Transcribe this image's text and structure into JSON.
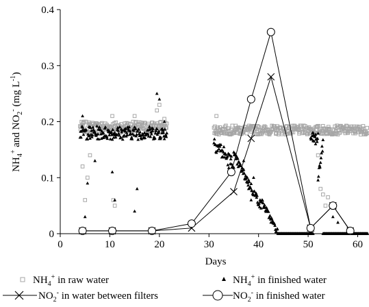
{
  "chart_data": {
    "type": "scatter",
    "xlabel": "Days",
    "ylabel": "NH4+ and NO2- (mg L-1)",
    "ylabel_parts": {
      "a": "NH",
      "a_sub": "4",
      "a_sup": "+",
      "b": " and NO",
      "b_sub": "2",
      "b_sup": "-",
      "c": " (mg L",
      "c_sup": "-1",
      "d": ")"
    },
    "xlim": [
      0,
      62
    ],
    "ylim": [
      0,
      0.4
    ],
    "xticks": [
      "0",
      "10",
      "20",
      "30",
      "40",
      "50",
      "60"
    ],
    "yticks": [
      "0",
      "0.1",
      "0.2",
      "0.3",
      "0.4"
    ],
    "colors": {
      "raw": "#a6a6a6",
      "finished_nh4": "#000000",
      "line": "#000000"
    },
    "legend": {
      "placement": "bottom",
      "entries": [
        {
          "pre": "NH",
          "sub": "4",
          "sup": "+",
          "post": " in raw water"
        },
        {
          "pre": "NH",
          "sub": "4",
          "sup": "+",
          "post": " in finished water"
        },
        {
          "pre": "NO",
          "sub": "2",
          "sup": "-",
          "post": " in water between filters"
        },
        {
          "pre": "NO",
          "sub": "2",
          "sup": "-",
          "post": " in finished water"
        }
      ]
    },
    "series": [
      {
        "key": "nh4_raw",
        "marker": "square-open",
        "segments": [
          {
            "x": [
              4,
              21.5
            ],
            "level": 0.19,
            "jitter": 0.01
          },
          {
            "x": [
              31,
              62
            ],
            "level": 0.185,
            "jitter": 0.008
          }
        ],
        "x": [
          4.5,
          5,
          5.5,
          6,
          10.5,
          10.7,
          11,
          15,
          19.5,
          20,
          21,
          31.5,
          52,
          52.5,
          53,
          53.5,
          54
        ],
        "y": [
          0.12,
          0.06,
          0.1,
          0.14,
          0.21,
          0.06,
          0.05,
          0.21,
          0.22,
          0.23,
          0.205,
          0.21,
          0.14,
          0.08,
          0.07,
          0.05,
          0.065
        ]
      },
      {
        "key": "nh4_finished",
        "marker": "triangle-small",
        "segments": [
          {
            "x": [
              4,
              21.5
            ],
            "level": 0.18,
            "jitter": 0.012
          },
          {
            "x": [
              31,
              35
            ],
            "from": 0.165,
            "to": 0.12,
            "jitter": 0.015
          },
          {
            "x": [
              35,
              40.5
            ],
            "from": 0.14,
            "to": 0.05,
            "jitter": 0.008
          },
          {
            "x": [
              40.5,
              44
            ],
            "from": 0.06,
            "to": 0.0,
            "jitter": 0.006
          },
          {
            "x": [
              44,
              51
            ],
            "level": 0.0,
            "jitter": 0.0
          },
          {
            "x": [
              50.5,
              52
            ],
            "level": 0.17,
            "jitter": 0.01
          },
          {
            "x": [
              52,
              53
            ],
            "from": 0.1,
            "to": 0.16,
            "jitter": 0.008
          },
          {
            "x": [
              53,
              62
            ],
            "level": 0.0,
            "jitter": 0.0
          }
        ],
        "x": [
          4.5,
          5,
          5.5,
          6,
          7,
          10.5,
          11,
          15,
          15.5,
          19.5,
          20,
          21,
          37,
          37.5,
          38,
          38.5,
          39,
          51,
          51.5,
          55,
          56
        ],
        "y": [
          0.21,
          0.03,
          0.09,
          0.17,
          0.13,
          0.11,
          0.06,
          0.04,
          0.08,
          0.25,
          0.24,
          0.2,
          0.13,
          0.1,
          0.08,
          0.06,
          0.1,
          0.18,
          0.16,
          0.03,
          0.02
        ]
      },
      {
        "key": "no2_between",
        "name": "NO2- in water between filters",
        "marker": "x",
        "x": [
          4.5,
          10.5,
          18.5,
          26.5,
          35,
          38.5,
          42.5,
          50.5,
          55,
          58.5
        ],
        "y": [
          0.005,
          0.005,
          0.005,
          0.01,
          0.075,
          0.17,
          0.28,
          0.01,
          0.05,
          0.005
        ]
      },
      {
        "key": "no2_finished",
        "name": "NO2- in finished water",
        "marker": "circle-open",
        "x": [
          4.5,
          10.5,
          18.5,
          26.5,
          34.5,
          38.5,
          42.5,
          50.5,
          55,
          58.5
        ],
        "y": [
          0.005,
          0.005,
          0.005,
          0.018,
          0.11,
          0.24,
          0.36,
          0.01,
          0.05,
          0.005
        ]
      }
    ]
  }
}
